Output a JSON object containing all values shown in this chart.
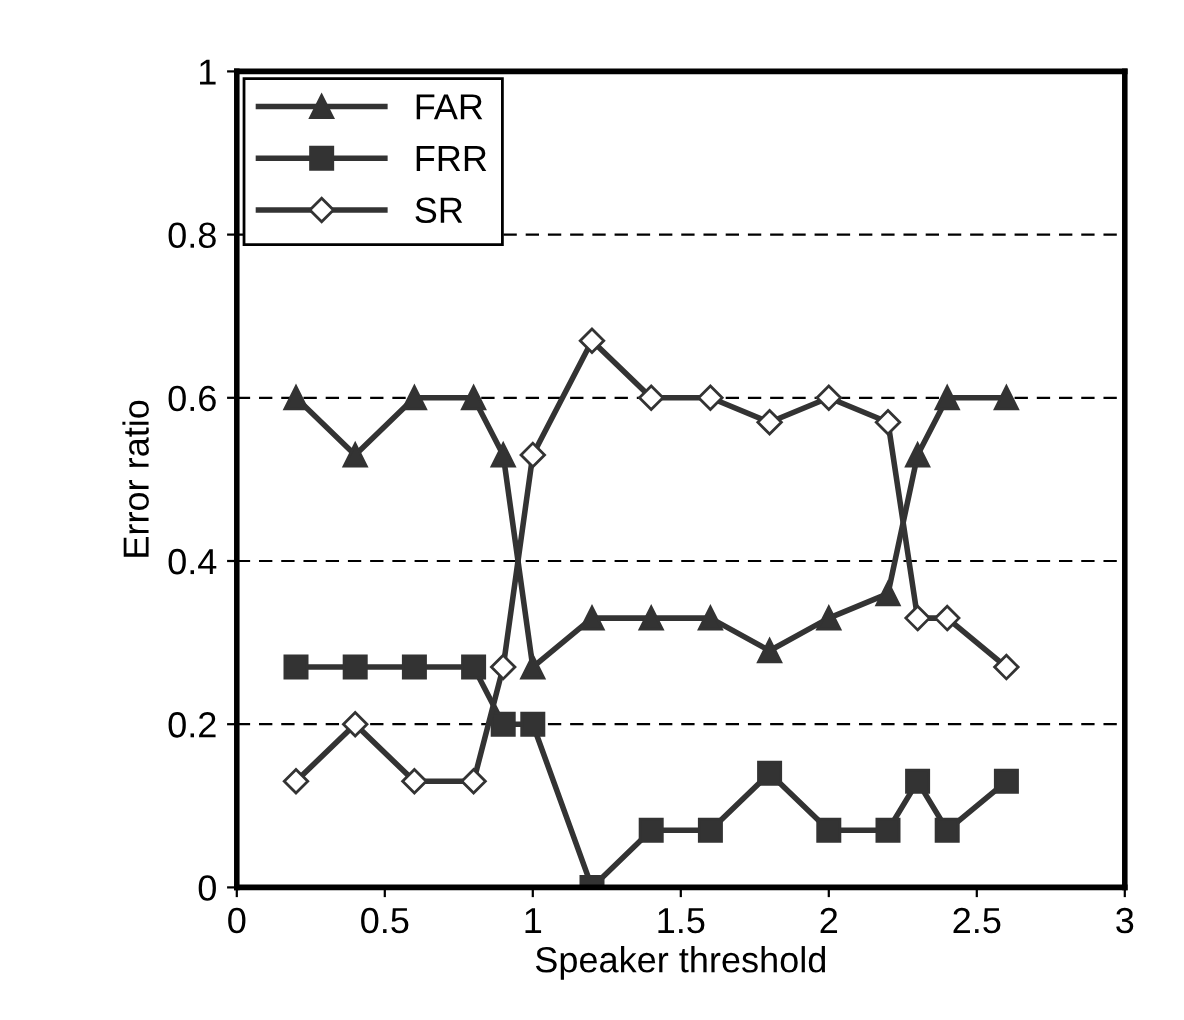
{
  "chart_data": {
    "type": "line",
    "xlabel": "Speaker threshold",
    "ylabel": "Error ratio",
    "x": [
      0.2,
      0.4,
      0.6,
      0.8,
      0.9,
      1.0,
      1.2,
      1.4,
      1.6,
      1.8,
      2.0,
      2.2,
      2.3,
      2.4,
      2.6
    ],
    "series": [
      {
        "name": "FAR",
        "color": "#333333",
        "marker": "triangle",
        "values": [
          0.6,
          0.53,
          0.6,
          0.6,
          0.53,
          0.27,
          0.33,
          0.33,
          0.33,
          0.29,
          0.33,
          0.36,
          0.53,
          0.6,
          0.6
        ]
      },
      {
        "name": "FRR",
        "color": "#333333",
        "marker": "square",
        "values": [
          0.27,
          0.27,
          0.27,
          0.27,
          0.2,
          0.2,
          0.0,
          0.07,
          0.07,
          0.14,
          0.07,
          0.07,
          0.13,
          0.07,
          0.13
        ]
      },
      {
        "name": "SR",
        "color": "#333333",
        "marker": "diamond",
        "values": [
          0.13,
          0.2,
          0.13,
          0.13,
          0.27,
          0.53,
          0.67,
          0.6,
          0.6,
          0.57,
          0.6,
          0.57,
          0.33,
          0.33,
          0.27
        ]
      }
    ],
    "xlim": [
      0,
      3
    ],
    "xticks": [
      0,
      0.5,
      1,
      1.5,
      2,
      2.5,
      3
    ],
    "ylim": [
      0,
      1
    ],
    "yticks": [
      0,
      0.2,
      0.4,
      0.6,
      0.8,
      1
    ],
    "grid": "y",
    "legend": "top left",
    "line_style": "solid"
  }
}
